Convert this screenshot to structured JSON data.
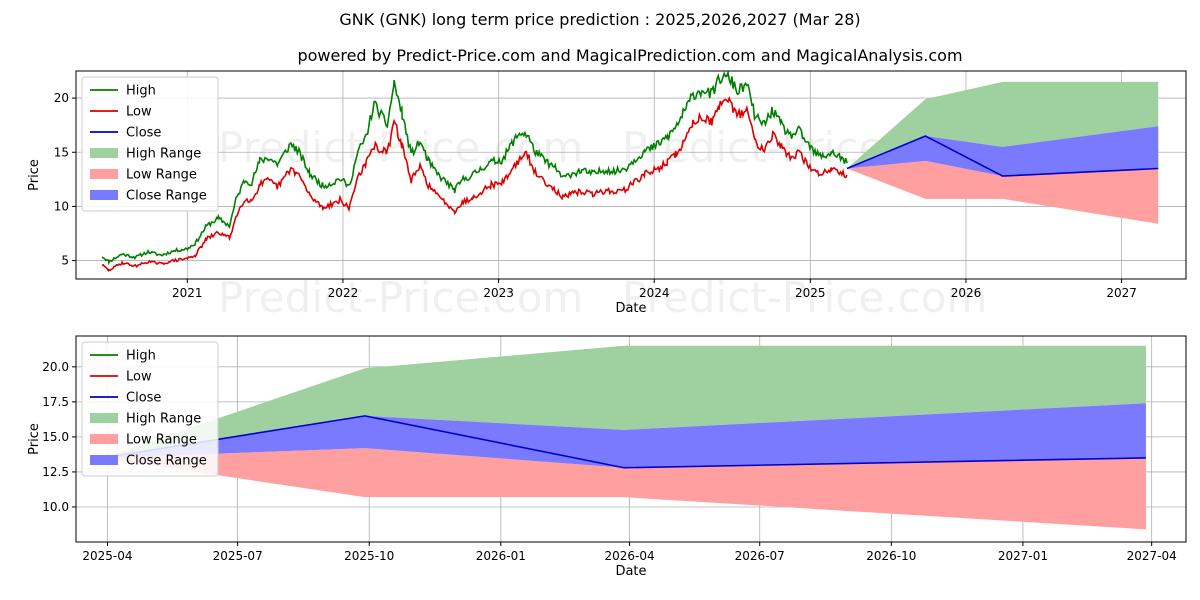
{
  "title": "GNK (GNK) long term price prediction : 2025,2026,2027 (Mar 28)",
  "subtitle": "powered by Predict-Price.com and MagicalPrediction.com and MagicalAnalysis.com",
  "watermark": "Predict-Price.com",
  "colors": {
    "high": "#008000",
    "low": "#dd0000",
    "close": "#0000cc",
    "high_range": "#9fd09f",
    "low_range": "#ff9f9f",
    "close_range": "#7a7aff"
  },
  "legend": {
    "high": "High",
    "low": "Low",
    "close": "Close",
    "high_range": "High Range",
    "low_range": "Low Range",
    "close_range": "Close Range"
  },
  "chart_data": [
    {
      "type": "line",
      "panel": "history",
      "xlabel": "Date",
      "ylabel": "Price",
      "xlim": [
        "2020-04-15",
        "2027-06-01"
      ],
      "ylim": [
        3.3,
        22.5
      ],
      "x_ticks": [
        "2021",
        "2022",
        "2023",
        "2024",
        "2025",
        "2026",
        "2027"
      ],
      "y_ticks": [
        5,
        10,
        15,
        20
      ],
      "grid": true,
      "legend_position": "upper-left",
      "history": {
        "dates": [
          "2020-06-15",
          "2020-07-01",
          "2020-08-01",
          "2020-09-01",
          "2020-10-01",
          "2020-11-01",
          "2020-12-01",
          "2021-01-01",
          "2021-01-20",
          "2021-02-15",
          "2021-03-15",
          "2021-04-10",
          "2021-04-25",
          "2021-05-15",
          "2021-06-01",
          "2021-06-20",
          "2021-07-10",
          "2021-08-01",
          "2021-09-01",
          "2021-09-20",
          "2021-10-15",
          "2021-11-15",
          "2021-12-10",
          "2021-12-25",
          "2022-01-15",
          "2022-02-05",
          "2022-02-25",
          "2022-03-15",
          "2022-04-01",
          "2022-04-15",
          "2022-05-01",
          "2022-05-20",
          "2022-06-10",
          "2022-07-01",
          "2022-07-20",
          "2022-08-10",
          "2022-09-01",
          "2022-09-20",
          "2022-10-10",
          "2022-11-01",
          "2022-11-25",
          "2022-12-15",
          "2023-01-10",
          "2023-02-01",
          "2023-02-20",
          "2023-03-10",
          "2023-03-25",
          "2023-04-20",
          "2023-05-15",
          "2023-06-01",
          "2023-06-20",
          "2023-07-15",
          "2023-08-10",
          "2023-09-10",
          "2023-10-01",
          "2023-10-25",
          "2023-11-15",
          "2023-12-10",
          "2024-01-01",
          "2024-02-01",
          "2024-02-20",
          "2024-03-15",
          "2024-04-01",
          "2024-04-25",
          "2024-05-15",
          "2024-06-01",
          "2024-06-25",
          "2024-07-15",
          "2024-08-05",
          "2024-08-25",
          "2024-09-15",
          "2024-10-05",
          "2024-10-25",
          "2024-11-15",
          "2024-12-05",
          "2024-12-25",
          "2025-01-15",
          "2025-02-01",
          "2025-02-20",
          "2025-03-10",
          "2025-03-28"
        ],
        "close": [
          5.0,
          4.5,
          5.2,
          4.9,
          5.3,
          5.1,
          5.4,
          5.6,
          6.0,
          7.5,
          8.2,
          7.6,
          9.8,
          11.5,
          11.3,
          13.0,
          13.4,
          12.8,
          14.5,
          13.9,
          12.0,
          10.8,
          11.2,
          11.6,
          10.8,
          13.8,
          15.2,
          17.2,
          16.8,
          16.2,
          19.5,
          17.0,
          13.5,
          14.8,
          13.0,
          12.0,
          11.2,
          10.5,
          11.4,
          11.8,
          12.5,
          13.0,
          13.2,
          14.5,
          15.5,
          16.0,
          14.2,
          13.2,
          12.5,
          11.7,
          12.0,
          12.3,
          12.0,
          12.4,
          12.2,
          12.5,
          13.2,
          14.0,
          14.3,
          15.2,
          16.0,
          17.5,
          19.0,
          19.5,
          19.0,
          20.5,
          20.8,
          19.5,
          20.2,
          17.0,
          16.5,
          17.8,
          16.5,
          15.5,
          16.0,
          14.8,
          14.0,
          13.9,
          14.3,
          14.0,
          13.5
        ],
        "high": [
          5.4,
          4.9,
          5.6,
          5.3,
          5.8,
          5.5,
          5.9,
          6.1,
          6.6,
          8.2,
          8.9,
          8.2,
          10.6,
          12.4,
          12.2,
          14.2,
          14.5,
          13.9,
          15.8,
          15.0,
          13.0,
          11.9,
          12.2,
          12.6,
          11.8,
          15.0,
          16.5,
          19.5,
          18.4,
          17.5,
          21.4,
          18.5,
          14.8,
          16.0,
          14.2,
          13.0,
          12.2,
          11.5,
          12.5,
          12.9,
          13.6,
          14.1,
          14.3,
          15.8,
          16.8,
          16.6,
          15.2,
          14.2,
          13.5,
          12.6,
          13.0,
          13.3,
          13.0,
          13.4,
          13.2,
          13.5,
          14.3,
          15.1,
          15.5,
          16.4,
          17.3,
          19.0,
          20.3,
          20.8,
          20.3,
          21.8,
          21.9,
          20.6,
          21.3,
          18.2,
          17.6,
          18.9,
          17.5,
          16.5,
          17.0,
          15.8,
          14.8,
          14.6,
          15.0,
          14.6,
          14.0
        ],
        "low": [
          4.6,
          4.1,
          4.8,
          4.5,
          4.9,
          4.7,
          5.0,
          5.2,
          5.5,
          7.0,
          7.6,
          7.1,
          9.0,
          10.7,
          10.5,
          12.0,
          12.4,
          11.8,
          13.5,
          12.9,
          11.0,
          9.9,
          10.3,
          10.6,
          9.8,
          12.8,
          14.0,
          15.6,
          15.2,
          14.9,
          17.8,
          15.6,
          12.4,
          13.6,
          12.0,
          11.0,
          10.3,
          9.6,
          10.4,
          10.8,
          11.5,
          12.0,
          12.2,
          13.4,
          14.4,
          14.8,
          13.2,
          12.3,
          11.5,
          10.8,
          11.1,
          11.4,
          11.1,
          11.5,
          11.3,
          11.6,
          12.2,
          13.0,
          13.3,
          14.1,
          14.8,
          16.2,
          17.8,
          18.3,
          17.8,
          19.2,
          19.6,
          18.4,
          19.0,
          15.9,
          15.4,
          16.7,
          15.5,
          14.5,
          15.0,
          13.8,
          13.1,
          13.1,
          13.5,
          13.3,
          12.9
        ]
      }
    },
    {
      "type": "area",
      "panel": "forecast",
      "xlabel": "Date",
      "ylabel": "Price",
      "xlim": [
        "2025-03-10",
        "2027-04-25"
      ],
      "ylim": [
        7.5,
        22.2
      ],
      "x_ticks": [
        "2025-04",
        "2025-07",
        "2025-10",
        "2026-01",
        "2026-04",
        "2026-07",
        "2026-10",
        "2027-01",
        "2027-04"
      ],
      "y_ticks": [
        "10.0",
        "12.5",
        "15.0",
        "17.5",
        "20.0"
      ],
      "grid": true,
      "legend_position": "upper-left",
      "prediction": {
        "dates": [
          "2025-03-28",
          "2025-09-28",
          "2026-03-28",
          "2027-03-28"
        ],
        "close": [
          13.5,
          16.5,
          12.8,
          13.5
        ],
        "high_range": [
          [
            13.5,
            13.5
          ],
          [
            16.5,
            19.9
          ],
          [
            15.5,
            21.5
          ],
          [
            17.4,
            21.5
          ]
        ],
        "close_range": [
          [
            13.5,
            13.5
          ],
          [
            14.2,
            16.5
          ],
          [
            12.8,
            15.5
          ],
          [
            13.5,
            17.4
          ]
        ],
        "low_range": [
          [
            13.5,
            13.5
          ],
          [
            10.7,
            14.2
          ],
          [
            10.7,
            12.8
          ],
          [
            8.4,
            13.5
          ]
        ]
      }
    }
  ]
}
